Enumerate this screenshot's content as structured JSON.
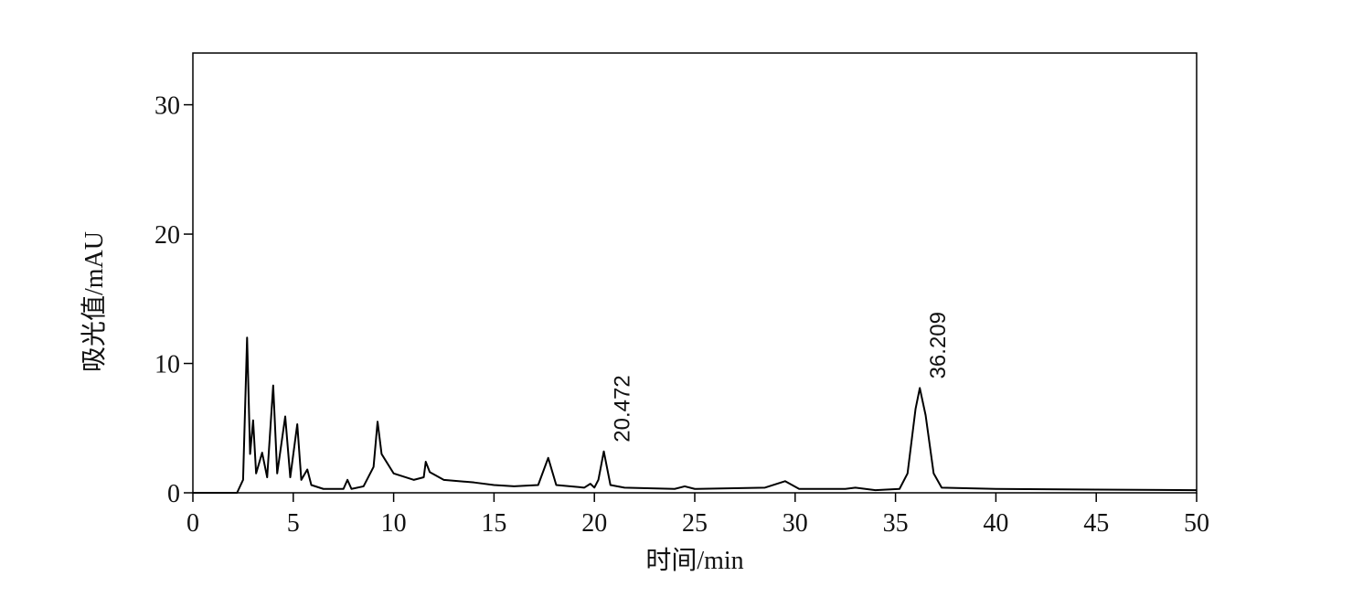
{
  "chart_data": {
    "type": "line",
    "xlabel": "时间/min",
    "ylabel": "吸光值/mAU",
    "xlim": [
      0,
      50
    ],
    "ylim": [
      0,
      34
    ],
    "xticks": [
      0,
      5,
      10,
      15,
      20,
      25,
      30,
      35,
      40,
      45,
      50
    ],
    "yticks": [
      0,
      10,
      20,
      30
    ],
    "color": "#000000",
    "x": [
      0,
      2.2,
      2.5,
      2.7,
      2.85,
      3.0,
      3.15,
      3.45,
      3.7,
      4.0,
      4.2,
      4.6,
      4.85,
      5.2,
      5.4,
      5.7,
      5.9,
      6.5,
      7.5,
      7.7,
      7.9,
      8.5,
      9.0,
      9.2,
      9.4,
      10,
      11,
      11.5,
      11.6,
      11.8,
      12.5,
      14,
      15,
      16,
      17.2,
      17.7,
      18.1,
      19.5,
      19.8,
      20.0,
      20.2,
      20.47,
      20.8,
      21.5,
      24,
      24.5,
      25,
      28.5,
      29.5,
      30.2,
      32.5,
      33,
      34,
      35.2,
      35.6,
      36.0,
      36.21,
      36.5,
      36.9,
      37.3,
      40,
      45,
      50
    ],
    "values": [
      0,
      0,
      1,
      12,
      3,
      5.6,
      1.5,
      3.1,
      1.2,
      8.3,
      1.5,
      5.9,
      1.2,
      5.3,
      1.0,
      1.8,
      0.6,
      0.3,
      0.3,
      1.0,
      0.3,
      0.5,
      2.0,
      5.5,
      3.0,
      1.5,
      1.0,
      1.2,
      2.4,
      1.6,
      1.0,
      0.8,
      0.6,
      0.5,
      0.6,
      2.7,
      0.6,
      0.4,
      0.7,
      0.4,
      1.0,
      3.2,
      0.6,
      0.4,
      0.3,
      0.5,
      0.3,
      0.4,
      0.9,
      0.3,
      0.3,
      0.4,
      0.2,
      0.3,
      1.5,
      6.5,
      8.1,
      6.0,
      1.5,
      0.4,
      0.3,
      0.25,
      0.2
    ],
    "annotations": [
      {
        "text": "20.472",
        "x": 20.472,
        "y": 3.2
      },
      {
        "text": "36.209",
        "x": 36.209,
        "y": 8.1
      }
    ]
  }
}
